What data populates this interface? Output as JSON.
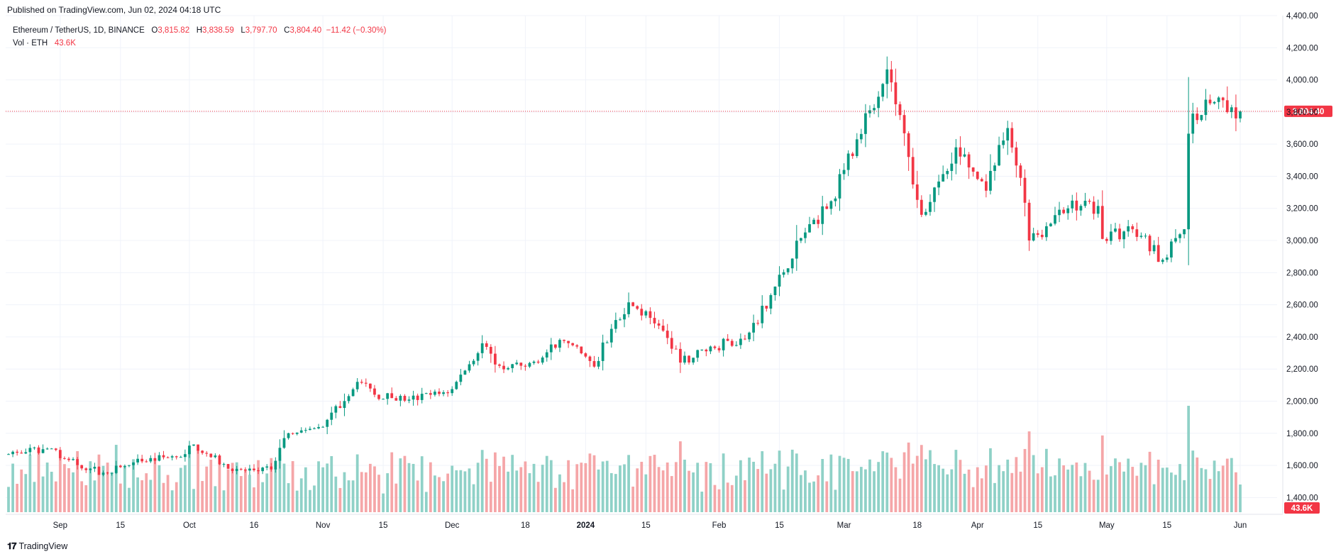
{
  "header": {
    "published": "Published on TradingView.com, Jun 02, 2024 04:18 UTC"
  },
  "legend": {
    "symbol": "Ethereum / TetherUS, 1D, BINANCE",
    "o_label": "O",
    "o_value": "3,815.82",
    "h_label": "H",
    "h_value": "3,838.59",
    "l_label": "L",
    "l_value": "3,797.70",
    "c_label": "C",
    "c_value": "3,804.40",
    "change": "−11.42 (−0.30%)",
    "vol_label": "Vol · ETH",
    "vol_value": "43.6K"
  },
  "footer": {
    "brand": "TradingView"
  },
  "colors": {
    "up": "#089981",
    "down": "#f23645",
    "vol_up": "#8fd1c7",
    "vol_down": "#f5a6a8",
    "grid": "#f0f3fa"
  },
  "chart_data": {
    "type": "candlestick",
    "price_axis": {
      "min": 1300,
      "max": 4400,
      "ticks": [
        "4,400.00",
        "4,200.00",
        "4,000.00",
        "3,800.00",
        "3,600.00",
        "3,400.00",
        "3,200.00",
        "3,000.00",
        "2,800.00",
        "2,600.00",
        "2,400.00",
        "2,200.00",
        "2,000.00",
        "1,800.00",
        "1,600.00",
        "1,400.00"
      ]
    },
    "last_price_label": "3,804.40",
    "last_price": 3804.4,
    "volume_label": "43.6K",
    "x_ticks": [
      "Sep",
      "15",
      "Oct",
      "16",
      "Nov",
      "15",
      "Dec",
      "18",
      "2024",
      "15",
      "Feb",
      "15",
      "Mar",
      "18",
      "Apr",
      "15",
      "May",
      "15",
      "Jun"
    ],
    "x_tick_dates": [
      "2023-09-01",
      "2023-09-15",
      "2023-10-01",
      "2023-10-16",
      "2023-11-01",
      "2023-11-15",
      "2023-12-01",
      "2023-12-18",
      "2024-01-01",
      "2024-01-15",
      "2024-02-01",
      "2024-02-15",
      "2024-03-01",
      "2024-03-18",
      "2024-04-01",
      "2024-04-15",
      "2024-05-01",
      "2024-05-15",
      "2024-06-01"
    ],
    "bold_ticks": [
      "2024"
    ],
    "close_anchors": [
      [
        "2023-08-20",
        1670
      ],
      [
        "2023-08-30",
        1705
      ],
      [
        "2023-09-01",
        1645
      ],
      [
        "2023-09-11",
        1555
      ],
      [
        "2023-09-20",
        1625
      ],
      [
        "2023-09-30",
        1670
      ],
      [
        "2023-10-02",
        1730
      ],
      [
        "2023-10-11",
        1565
      ],
      [
        "2023-10-20",
        1575
      ],
      [
        "2023-10-23",
        1770
      ],
      [
        "2023-11-01",
        1840
      ],
      [
        "2023-11-09",
        2120
      ],
      [
        "2023-11-13",
        2040
      ],
      [
        "2023-11-21",
        2010
      ],
      [
        "2023-11-28",
        2045
      ],
      [
        "2023-12-01",
        2075
      ],
      [
        "2023-12-08",
        2360
      ],
      [
        "2023-12-12",
        2220
      ],
      [
        "2023-12-18",
        2215
      ],
      [
        "2023-12-27",
        2375
      ],
      [
        "2024-01-03",
        2215
      ],
      [
        "2024-01-08",
        2505
      ],
      [
        "2024-01-11",
        2615
      ],
      [
        "2024-01-18",
        2470
      ],
      [
        "2024-01-22",
        2325
      ],
      [
        "2024-01-23",
        2240
      ],
      [
        "2024-01-30",
        2340
      ],
      [
        "2024-02-07",
        2385
      ],
      [
        "2024-02-13",
        2660
      ],
      [
        "2024-02-20",
        3015
      ],
      [
        "2024-02-27",
        3245
      ],
      [
        "2024-03-04",
        3630
      ],
      [
        "2024-03-11",
        4065
      ],
      [
        "2024-03-16",
        3520
      ],
      [
        "2024-03-19",
        3160
      ],
      [
        "2024-03-22",
        3330
      ],
      [
        "2024-03-27",
        3580
      ],
      [
        "2024-04-03",
        3310
      ],
      [
        "2024-04-08",
        3700
      ],
      [
        "2024-04-12",
        3235
      ],
      [
        "2024-04-13",
        3000
      ],
      [
        "2024-04-22",
        3200
      ],
      [
        "2024-04-29",
        3215
      ],
      [
        "2024-04-30",
        3010
      ],
      [
        "2024-05-07",
        3070
      ],
      [
        "2024-05-14",
        2880
      ],
      [
        "2024-05-19",
        3070
      ],
      [
        "2024-05-20",
        3665
      ],
      [
        "2024-05-21",
        3790
      ],
      [
        "2024-05-27",
        3890
      ],
      [
        "2024-05-31",
        3760
      ],
      [
        "2024-06-01",
        3804
      ]
    ]
  }
}
